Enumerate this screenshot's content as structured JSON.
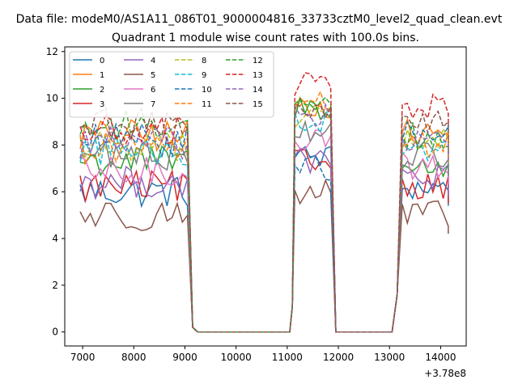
{
  "figure": {
    "suptitle": "Data file: modeM0/AS1A11_086T01_9000004816_33733cztM0_level2_quad_clean.evt",
    "title": "Quadrant 1 module wise count rates with 100.0s bins."
  },
  "chart_data": {
    "type": "line",
    "title": "Quadrant 1 module wise count rates with 100.0s bins.",
    "xlabel": "",
    "ylabel": "",
    "x_offset_label": "+3.78e8",
    "xlim": [
      6650,
      14500
    ],
    "ylim": [
      -0.6,
      12.2
    ],
    "xticks": [
      7000,
      8000,
      9000,
      10000,
      11000,
      12000,
      13000,
      14000
    ],
    "yticks": [
      0,
      2,
      4,
      6,
      8,
      10,
      12
    ],
    "grid": false,
    "legend": {
      "placement": "top-left",
      "ncol": 4
    },
    "segments": {
      "seg1_x": [
        6950,
        9150
      ],
      "seg2_x": [
        11050,
        11950
      ],
      "seg3_x": [
        13050,
        14150
      ],
      "zero_x": [
        9150,
        11050,
        11950,
        13050
      ]
    },
    "series": [
      {
        "name": "0",
        "color": "#1f77b4",
        "dash": "solid",
        "level1": 6.0,
        "level2": 7.5,
        "level3": 6.2
      },
      {
        "name": "1",
        "color": "#ff7f0e",
        "dash": "solid",
        "level1": 8.4,
        "level2": 9.7,
        "level3": 8.5
      },
      {
        "name": "2",
        "color": "#2ca02c",
        "dash": "solid",
        "level1": 7.3,
        "level2": 9.6,
        "level3": 7.0
      },
      {
        "name": "3",
        "color": "#d62728",
        "dash": "solid",
        "level1": 6.2,
        "level2": 7.3,
        "level3": 6.3
      },
      {
        "name": "4",
        "color": "#9467bd",
        "dash": "solid",
        "level1": 6.4,
        "level2": 7.3,
        "level3": 6.6
      },
      {
        "name": "5",
        "color": "#8c564b",
        "dash": "solid",
        "level1": 5.0,
        "level2": 6.0,
        "level3": 5.0
      },
      {
        "name": "6",
        "color": "#e377c2",
        "dash": "solid",
        "level1": 6.8,
        "level2": 8.3,
        "level3": 7.1
      },
      {
        "name": "7",
        "color": "#7f7f7f",
        "dash": "solid",
        "level1": 7.6,
        "level2": 8.7,
        "level3": 7.5
      },
      {
        "name": "8",
        "color": "#bcbd22",
        "dash": "dashed",
        "level1": 8.0,
        "level2": 9.3,
        "level3": 8.2
      },
      {
        "name": "9",
        "color": "#17becf",
        "dash": "dashed",
        "level1": 7.8,
        "level2": 9.0,
        "level3": 7.9
      },
      {
        "name": "10",
        "color": "#1f77b4",
        "dash": "dashed",
        "level1": 8.2,
        "level2": 7.0,
        "level3": 8.4
      },
      {
        "name": "11",
        "color": "#ff7f0e",
        "dash": "dashed",
        "level1": 7.9,
        "level2": 9.8,
        "level3": 8.0
      },
      {
        "name": "12",
        "color": "#2ca02c",
        "dash": "dashed",
        "level1": 8.8,
        "level2": 10.0,
        "level3": 8.4
      },
      {
        "name": "13",
        "color": "#d62728",
        "dash": "dashed",
        "level1": 8.6,
        "level2": 10.6,
        "level3": 9.6
      },
      {
        "name": "14",
        "color": "#9467bd",
        "dash": "dashed",
        "level1": 8.1,
        "level2": 9.2,
        "level3": 8.1
      },
      {
        "name": "15",
        "color": "#8c564b",
        "dash": "dashed",
        "level1": 8.9,
        "level2": 9.5,
        "level3": 8.9
      }
    ]
  }
}
